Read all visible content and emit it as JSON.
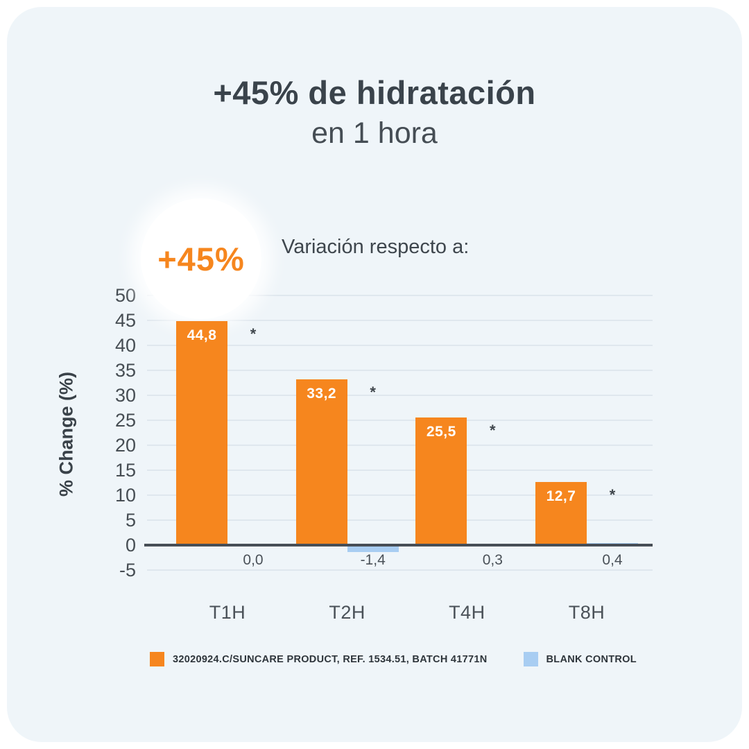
{
  "header": {
    "title_line1": "+45% de hidratación",
    "title_line2": "en 1 hora"
  },
  "badge": {
    "text": "+45%"
  },
  "note": {
    "text": "Variación respecto a:"
  },
  "colors": {
    "card_background": "#EFF5F9",
    "page_background": "#FFFFFF",
    "accent_orange": "#F6861E",
    "control_blue": "#A8CDF2",
    "title_text": "#3A434B",
    "axis_text": "#464D53",
    "gridline": "#DFE7EE",
    "zero_axis": "#474E56",
    "legend_text": "#2E353B"
  },
  "chart_data": {
    "type": "bar",
    "title": "+45% de hidratación en 1 hora",
    "subtitle": "Variación respecto a:",
    "categories": [
      "T1H",
      "T2H",
      "T4H",
      "T8H"
    ],
    "series": [
      {
        "name": "32020924.C/SUNCARE PRODUCT, REF. 1534.51, BATCH 41771N",
        "color": "#F6861E",
        "values": [
          44.8,
          33.2,
          25.5,
          12.7
        ],
        "labels": [
          "44,8",
          "33,2",
          "25,5",
          "12,7"
        ],
        "significance": [
          "*",
          "*",
          "*",
          "*"
        ]
      },
      {
        "name": "BLANK CONTROL",
        "color": "#A8CDF2",
        "values": [
          0.0,
          -1.4,
          0.3,
          0.4
        ],
        "labels": [
          "0,0",
          "-1,4",
          "0,3",
          "0,4"
        ]
      }
    ],
    "xlabel": "",
    "ylabel": "% Change (%)",
    "yticks": [
      50,
      45,
      40,
      35,
      30,
      25,
      20,
      15,
      10,
      5,
      0,
      -5
    ],
    "ylim": [
      -5,
      52
    ],
    "grid": true,
    "legend_position": "bottom"
  }
}
